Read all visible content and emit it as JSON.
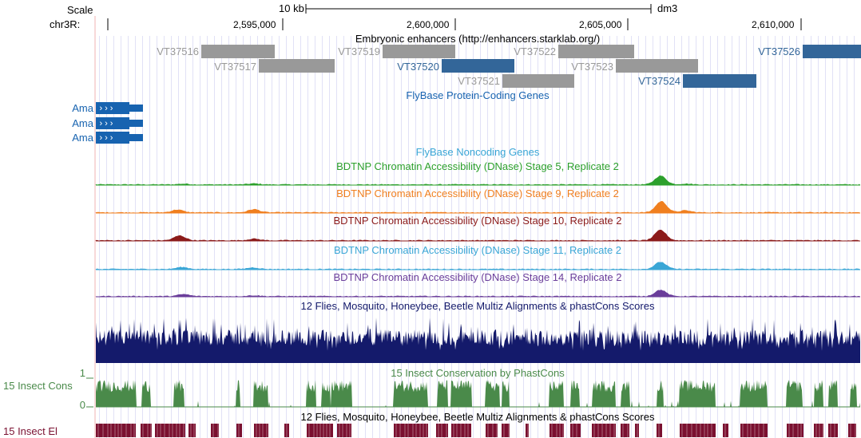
{
  "header": {
    "scale_label": "Scale",
    "chrom_label": "chr3R:",
    "scale_bar_text": "10 kb",
    "assembly": "dm3",
    "positions": [
      "2,595,000",
      "2,600,000",
      "2,605,000",
      "2,610,000"
    ]
  },
  "tracks": {
    "enhancers_title": "Embryonic enhancers (http://enhancers.starklab.org/)",
    "enhancers": [
      {
        "name": "VT37516",
        "color": "#999999"
      },
      {
        "name": "VT37517",
        "color": "#999999"
      },
      {
        "name": "VT37519",
        "color": "#999999"
      },
      {
        "name": "VT37520",
        "color": "#336699"
      },
      {
        "name": "VT37521",
        "color": "#999999"
      },
      {
        "name": "VT37522",
        "color": "#999999"
      },
      {
        "name": "VT37523",
        "color": "#999999"
      },
      {
        "name": "VT37524",
        "color": "#336699"
      },
      {
        "name": "VT37526",
        "color": "#336699"
      }
    ],
    "coding_title": "FlyBase Protein-Coding Genes",
    "coding_genes": [
      {
        "name": "Ama",
        "color": "#1763b0"
      },
      {
        "name": "Ama",
        "color": "#1763b0"
      },
      {
        "name": "Ama",
        "color": "#1763b0"
      }
    ],
    "noncoding_title": "FlyBase Noncoding Genes",
    "dnase": [
      {
        "title": "BDTNP Chromatin Accessibility (DNase) Stage 5, Replicate 2",
        "color": "#2ca02c"
      },
      {
        "title": "BDTNP Chromatin Accessibility (DNase) Stage 9, Replicate 2",
        "color": "#f07f1f"
      },
      {
        "title": "BDTNP Chromatin Accessibility (DNase) Stage 10, Replicate 2",
        "color": "#8b1a1a"
      },
      {
        "title": "BDTNP Chromatin Accessibility (DNase) Stage 11, Replicate 2",
        "color": "#3aa6d6"
      },
      {
        "title": "BDTNP Chromatin Accessibility (DNase) Stage 14, Replicate 2",
        "color": "#6a3d9a"
      }
    ],
    "multiz_title": "12 Flies, Mosquito, Honeybee, Beetle Multiz Alignments & phastCons Scores",
    "multiz_color": "#141a6b",
    "phastcons_title": "15 Insect Conservation by PhastCons",
    "phastcons_side_label": "15 Insect Cons",
    "phastcons_axis_max": "1",
    "phastcons_axis_min": "0",
    "phastcons_color": "#4a8a4a",
    "elements_title": "12 Flies, Mosquito, Honeybee, Beetle Multiz Alignments & phastCons Scores",
    "elements_side_label": "15 Insect El",
    "elements_color": "#7a1030"
  },
  "colors": {
    "enhancer_title": "#000000",
    "coding_title": "#1763b0",
    "noncoding_title": "#3aa6d6",
    "grid": "#c8c8ee",
    "left_edge": "#f2b3b3"
  }
}
